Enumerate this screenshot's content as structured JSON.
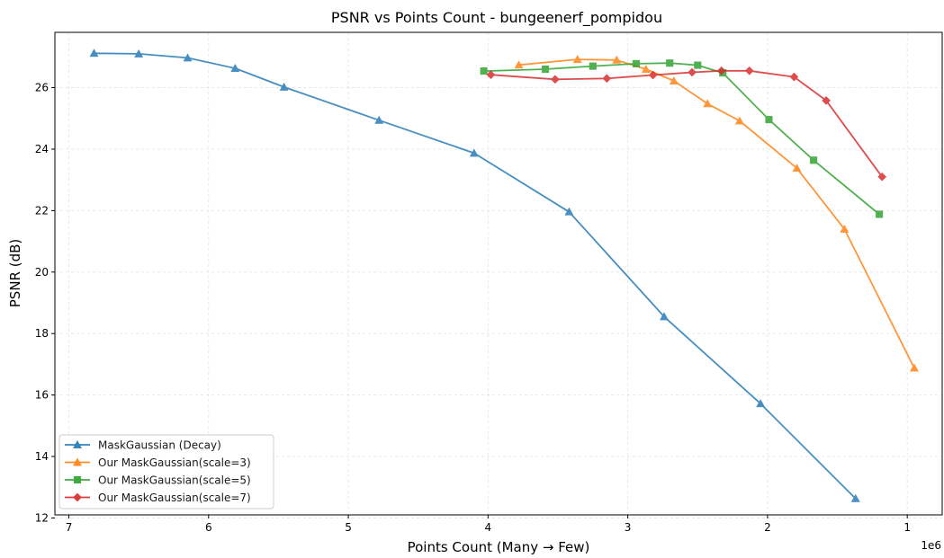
{
  "chart_data": {
    "type": "line",
    "title": "PSNR vs Points Count - bungeenerf_pompidou",
    "xlabel": "Points Count (Many → Few)",
    "ylabel": "PSNR (dB)",
    "x_offset_label": "1e6",
    "x_scale_factor": 1000000,
    "x_inverted": true,
    "xlim": [
      7100000,
      750000
    ],
    "ylim": [
      12.1,
      27.8
    ],
    "xticks": [
      7,
      6,
      5,
      4,
      3,
      2,
      1
    ],
    "yticks": [
      12,
      14,
      16,
      18,
      20,
      22,
      24,
      26
    ],
    "grid": true,
    "legend_position": "lower-left",
    "series": [
      {
        "name": "MaskGaussian (Decay)",
        "color": "#1f77b4",
        "marker": "triangle",
        "x": [
          6820000,
          6500000,
          6150000,
          5810000,
          5460000,
          4780000,
          4100000,
          3420000,
          2740000,
          2050000,
          1370000
        ],
        "y": [
          27.12,
          27.1,
          26.97,
          26.63,
          26.02,
          24.94,
          23.87,
          21.96,
          18.55,
          15.72,
          12.63
        ]
      },
      {
        "name": "Our MaskGaussian(scale=3)",
        "color": "#ff7f0e",
        "marker": "triangle",
        "x": [
          3780000,
          3360000,
          3080000,
          2870000,
          2670000,
          2430000,
          2200000,
          1790000,
          1450000,
          950000
        ],
        "y": [
          26.74,
          26.92,
          26.9,
          26.6,
          26.22,
          25.48,
          24.92,
          23.38,
          21.4,
          16.88
        ]
      },
      {
        "name": "Our MaskGaussian(scale=5)",
        "color": "#2ca02c",
        "marker": "square",
        "x": [
          4030000,
          3590000,
          3250000,
          2940000,
          2700000,
          2500000,
          2320000,
          1990000,
          1670000,
          1200000
        ],
        "y": [
          26.54,
          26.6,
          26.7,
          26.78,
          26.8,
          26.73,
          26.48,
          24.96,
          23.64,
          21.88
        ]
      },
      {
        "name": "Our MaskGaussian(scale=7)",
        "color": "#d62728",
        "marker": "diamond",
        "x": [
          3980000,
          3520000,
          3150000,
          2820000,
          2540000,
          2330000,
          2130000,
          1810000,
          1580000,
          1180000
        ],
        "y": [
          26.42,
          26.27,
          26.3,
          26.41,
          26.5,
          26.55,
          26.55,
          26.35,
          25.58,
          23.1
        ]
      }
    ]
  }
}
